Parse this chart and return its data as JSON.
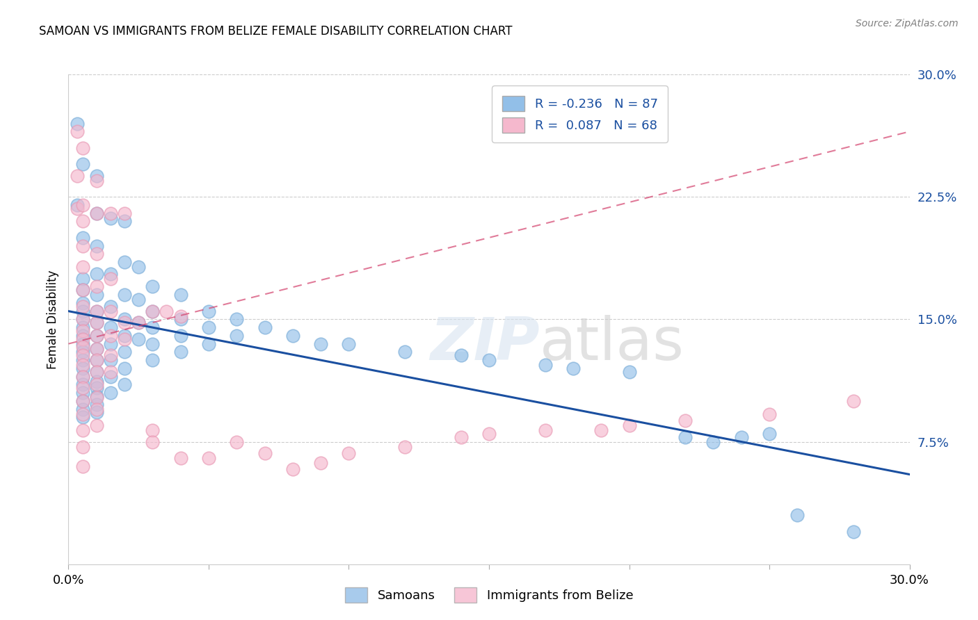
{
  "title": "SAMOAN VS IMMIGRANTS FROM BELIZE FEMALE DISABILITY CORRELATION CHART",
  "source": "Source: ZipAtlas.com",
  "ylabel": "Female Disability",
  "xlim": [
    0.0,
    0.3
  ],
  "ylim": [
    0.0,
    0.3
  ],
  "ytick_vals": [
    0.075,
    0.15,
    0.225,
    0.3
  ],
  "yticklabels": [
    "7.5%",
    "15.0%",
    "22.5%",
    "30.0%"
  ],
  "samoan_R": -0.236,
  "samoan_N": 87,
  "belize_R": 0.087,
  "belize_N": 68,
  "samoan_color": "#92bfe8",
  "samoan_edge_color": "#7aadd8",
  "belize_color": "#f5b8cd",
  "belize_edge_color": "#e899b4",
  "samoan_line_color": "#1a4fa0",
  "belize_line_color": "#d4436e",
  "legend_text_color": "#1a4fa0",
  "watermark": "ZIPatlas",
  "background_color": "#ffffff",
  "grid_color": "#cccccc",
  "samoan_points": [
    [
      0.003,
      0.27
    ],
    [
      0.003,
      0.22
    ],
    [
      0.005,
      0.245
    ],
    [
      0.005,
      0.2
    ],
    [
      0.005,
      0.175
    ],
    [
      0.005,
      0.168
    ],
    [
      0.005,
      0.16
    ],
    [
      0.005,
      0.155
    ],
    [
      0.005,
      0.15
    ],
    [
      0.005,
      0.145
    ],
    [
      0.005,
      0.14
    ],
    [
      0.005,
      0.135
    ],
    [
      0.005,
      0.13
    ],
    [
      0.005,
      0.125
    ],
    [
      0.005,
      0.12
    ],
    [
      0.005,
      0.115
    ],
    [
      0.005,
      0.11
    ],
    [
      0.005,
      0.105
    ],
    [
      0.005,
      0.1
    ],
    [
      0.005,
      0.095
    ],
    [
      0.005,
      0.09
    ],
    [
      0.01,
      0.238
    ],
    [
      0.01,
      0.215
    ],
    [
      0.01,
      0.195
    ],
    [
      0.01,
      0.178
    ],
    [
      0.01,
      0.165
    ],
    [
      0.01,
      0.155
    ],
    [
      0.01,
      0.148
    ],
    [
      0.01,
      0.14
    ],
    [
      0.01,
      0.132
    ],
    [
      0.01,
      0.125
    ],
    [
      0.01,
      0.118
    ],
    [
      0.01,
      0.112
    ],
    [
      0.01,
      0.108
    ],
    [
      0.01,
      0.103
    ],
    [
      0.01,
      0.098
    ],
    [
      0.01,
      0.093
    ],
    [
      0.015,
      0.212
    ],
    [
      0.015,
      0.178
    ],
    [
      0.015,
      0.158
    ],
    [
      0.015,
      0.145
    ],
    [
      0.015,
      0.135
    ],
    [
      0.015,
      0.125
    ],
    [
      0.015,
      0.115
    ],
    [
      0.015,
      0.105
    ],
    [
      0.02,
      0.21
    ],
    [
      0.02,
      0.185
    ],
    [
      0.02,
      0.165
    ],
    [
      0.02,
      0.15
    ],
    [
      0.02,
      0.14
    ],
    [
      0.02,
      0.13
    ],
    [
      0.02,
      0.12
    ],
    [
      0.02,
      0.11
    ],
    [
      0.025,
      0.182
    ],
    [
      0.025,
      0.162
    ],
    [
      0.025,
      0.148
    ],
    [
      0.025,
      0.138
    ],
    [
      0.03,
      0.17
    ],
    [
      0.03,
      0.155
    ],
    [
      0.03,
      0.145
    ],
    [
      0.03,
      0.135
    ],
    [
      0.03,
      0.125
    ],
    [
      0.04,
      0.165
    ],
    [
      0.04,
      0.15
    ],
    [
      0.04,
      0.14
    ],
    [
      0.04,
      0.13
    ],
    [
      0.05,
      0.155
    ],
    [
      0.05,
      0.145
    ],
    [
      0.05,
      0.135
    ],
    [
      0.06,
      0.15
    ],
    [
      0.06,
      0.14
    ],
    [
      0.07,
      0.145
    ],
    [
      0.08,
      0.14
    ],
    [
      0.09,
      0.135
    ],
    [
      0.1,
      0.135
    ],
    [
      0.12,
      0.13
    ],
    [
      0.14,
      0.128
    ],
    [
      0.15,
      0.125
    ],
    [
      0.17,
      0.122
    ],
    [
      0.18,
      0.12
    ],
    [
      0.2,
      0.118
    ],
    [
      0.22,
      0.078
    ],
    [
      0.23,
      0.075
    ],
    [
      0.24,
      0.078
    ],
    [
      0.25,
      0.08
    ],
    [
      0.26,
      0.03
    ],
    [
      0.28,
      0.02
    ]
  ],
  "belize_points": [
    [
      0.003,
      0.265
    ],
    [
      0.003,
      0.238
    ],
    [
      0.003,
      0.218
    ],
    [
      0.005,
      0.255
    ],
    [
      0.005,
      0.22
    ],
    [
      0.005,
      0.21
    ],
    [
      0.005,
      0.195
    ],
    [
      0.005,
      0.182
    ],
    [
      0.005,
      0.168
    ],
    [
      0.005,
      0.158
    ],
    [
      0.005,
      0.15
    ],
    [
      0.005,
      0.143
    ],
    [
      0.005,
      0.138
    ],
    [
      0.005,
      0.133
    ],
    [
      0.005,
      0.128
    ],
    [
      0.005,
      0.122
    ],
    [
      0.005,
      0.115
    ],
    [
      0.005,
      0.108
    ],
    [
      0.005,
      0.1
    ],
    [
      0.005,
      0.092
    ],
    [
      0.005,
      0.082
    ],
    [
      0.005,
      0.072
    ],
    [
      0.005,
      0.06
    ],
    [
      0.01,
      0.235
    ],
    [
      0.01,
      0.215
    ],
    [
      0.01,
      0.19
    ],
    [
      0.01,
      0.17
    ],
    [
      0.01,
      0.155
    ],
    [
      0.01,
      0.148
    ],
    [
      0.01,
      0.14
    ],
    [
      0.01,
      0.132
    ],
    [
      0.01,
      0.125
    ],
    [
      0.01,
      0.118
    ],
    [
      0.01,
      0.11
    ],
    [
      0.01,
      0.102
    ],
    [
      0.01,
      0.095
    ],
    [
      0.01,
      0.085
    ],
    [
      0.015,
      0.215
    ],
    [
      0.015,
      0.175
    ],
    [
      0.015,
      0.155
    ],
    [
      0.015,
      0.14
    ],
    [
      0.015,
      0.128
    ],
    [
      0.015,
      0.118
    ],
    [
      0.02,
      0.215
    ],
    [
      0.02,
      0.148
    ],
    [
      0.02,
      0.138
    ],
    [
      0.025,
      0.148
    ],
    [
      0.03,
      0.155
    ],
    [
      0.03,
      0.082
    ],
    [
      0.03,
      0.075
    ],
    [
      0.035,
      0.155
    ],
    [
      0.04,
      0.152
    ],
    [
      0.04,
      0.065
    ],
    [
      0.05,
      0.065
    ],
    [
      0.06,
      0.075
    ],
    [
      0.07,
      0.068
    ],
    [
      0.08,
      0.058
    ],
    [
      0.09,
      0.062
    ],
    [
      0.1,
      0.068
    ],
    [
      0.12,
      0.072
    ],
    [
      0.14,
      0.078
    ],
    [
      0.15,
      0.08
    ],
    [
      0.17,
      0.082
    ],
    [
      0.19,
      0.082
    ],
    [
      0.2,
      0.085
    ],
    [
      0.22,
      0.088
    ],
    [
      0.25,
      0.092
    ],
    [
      0.28,
      0.1
    ]
  ]
}
